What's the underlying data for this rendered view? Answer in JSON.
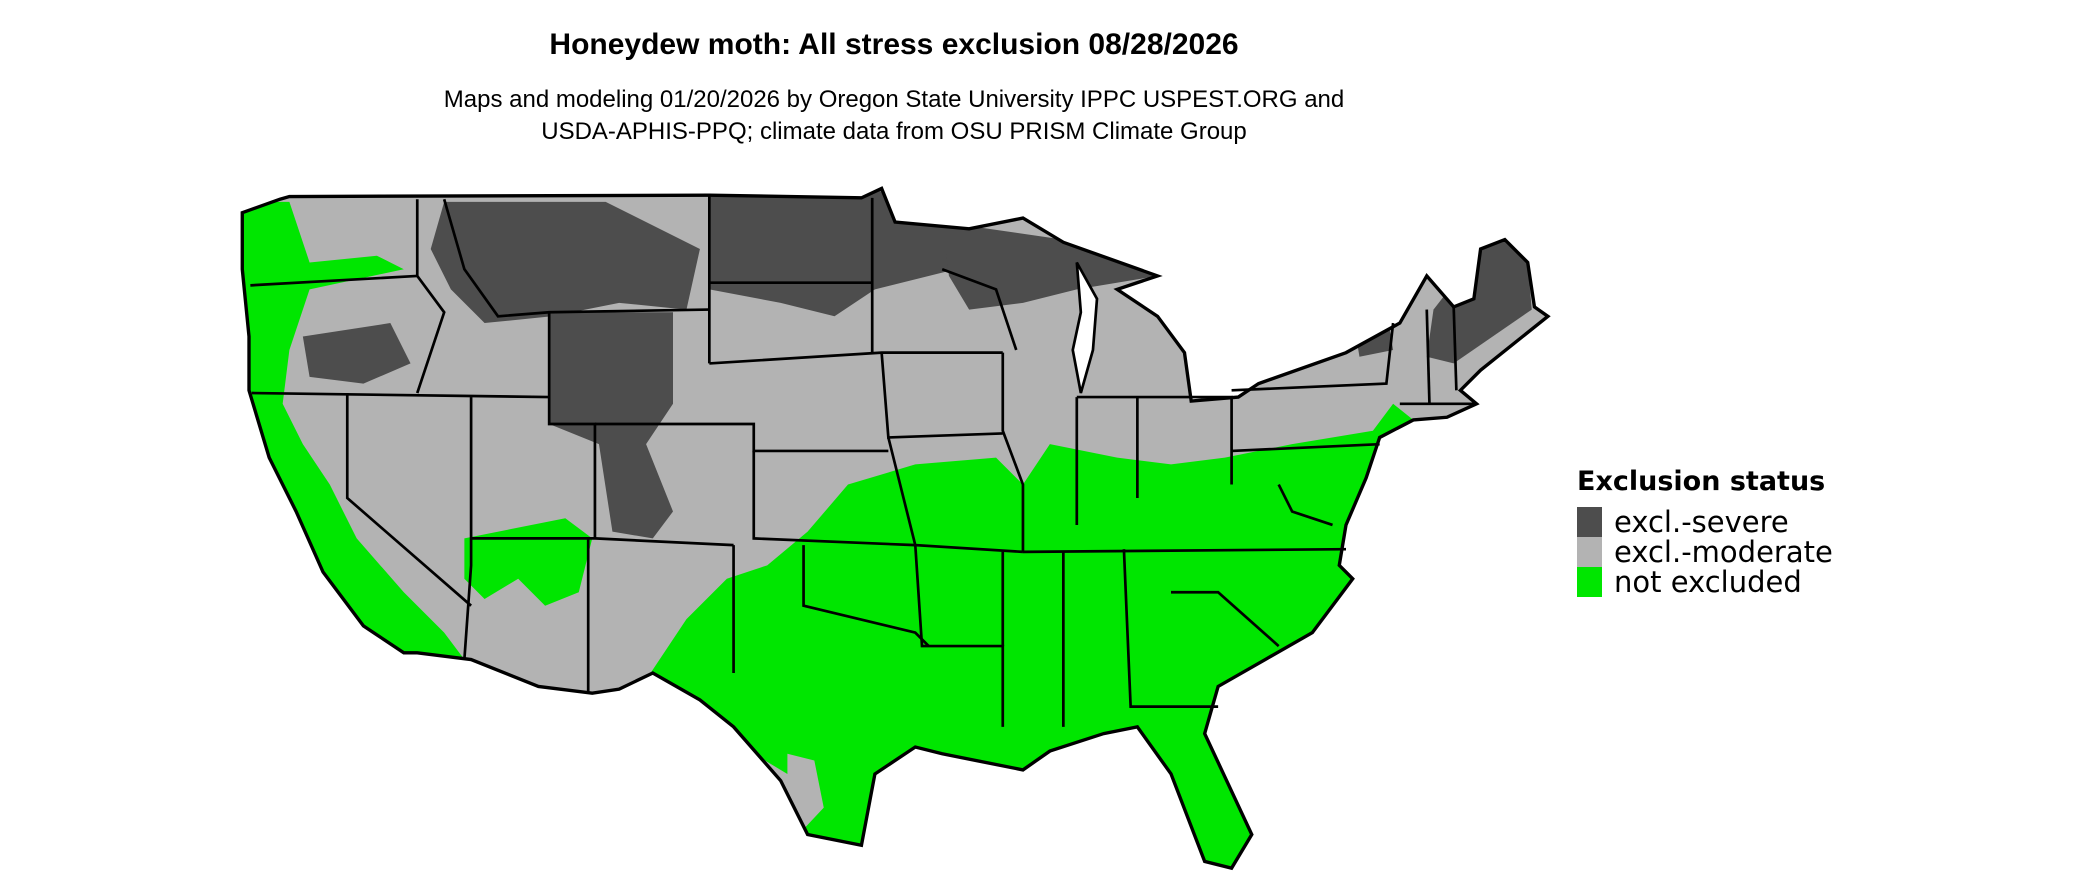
{
  "header": {
    "title": "Honeydew moth: All stress exclusion 08/28/2026",
    "subtitle_line1": "Maps and modeling 01/20/2026 by Oregon State University IPPC USPEST.ORG and",
    "subtitle_line2": "USDA-APHIS-PPQ; climate data from OSU PRISM Climate Group"
  },
  "map": {
    "region": "Contiguous United States",
    "border_color": "#000000",
    "background_color": "#ffffff"
  },
  "legend": {
    "title": "Exclusion status",
    "items": [
      {
        "label": "excl.-severe",
        "color": "#4d4d4d"
      },
      {
        "label": "excl.-moderate",
        "color": "#b3b3b3"
      },
      {
        "label": "not excluded",
        "color": "#00e600"
      }
    ]
  }
}
